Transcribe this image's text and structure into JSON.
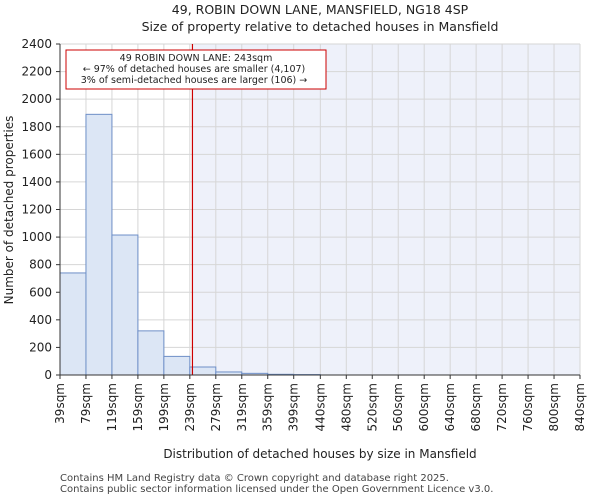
{
  "chart_data": {
    "type": "bar",
    "title": "49, ROBIN DOWN LANE, MANSFIELD, NG18 4SP",
    "subtitle": "Size of property relative to detached houses in Mansfield",
    "xlabel": "Distribution of detached houses by size in Mansfield",
    "ylabel": "Number of detached properties",
    "ylim": [
      0,
      2400
    ],
    "yticks": [
      0,
      200,
      400,
      600,
      800,
      1000,
      1200,
      1400,
      1600,
      1800,
      2000,
      2200,
      2400
    ],
    "xlim": [
      39,
      840
    ],
    "categories": [
      "39sqm",
      "79sqm",
      "119sqm",
      "159sqm",
      "199sqm",
      "239sqm",
      "279sqm",
      "319sqm",
      "359sqm",
      "399sqm",
      "440sqm",
      "480sqm",
      "520sqm",
      "560sqm",
      "600sqm",
      "640sqm",
      "680sqm",
      "720sqm",
      "760sqm",
      "800sqm",
      "840sqm"
    ],
    "tick_values": [
      39,
      79,
      119,
      159,
      199,
      239,
      279,
      319,
      359,
      399,
      440,
      480,
      520,
      560,
      600,
      640,
      680,
      720,
      760,
      800,
      840
    ],
    "bins": [
      {
        "start": 39,
        "end": 79,
        "value": 740
      },
      {
        "start": 79,
        "end": 119,
        "value": 1890
      },
      {
        "start": 119,
        "end": 159,
        "value": 1015
      },
      {
        "start": 159,
        "end": 199,
        "value": 320
      },
      {
        "start": 199,
        "end": 239,
        "value": 135
      },
      {
        "start": 239,
        "end": 279,
        "value": 58
      },
      {
        "start": 279,
        "end": 319,
        "value": 22
      },
      {
        "start": 319,
        "end": 359,
        "value": 12
      },
      {
        "start": 359,
        "end": 399,
        "value": 5
      },
      {
        "start": 399,
        "end": 440,
        "value": 3
      },
      {
        "start": 440,
        "end": 480,
        "value": 0
      },
      {
        "start": 480,
        "end": 520,
        "value": 0
      },
      {
        "start": 520,
        "end": 560,
        "value": 0
      },
      {
        "start": 560,
        "end": 600,
        "value": 0
      },
      {
        "start": 600,
        "end": 640,
        "value": 0
      },
      {
        "start": 640,
        "end": 680,
        "value": 0
      },
      {
        "start": 680,
        "end": 720,
        "value": 0
      },
      {
        "start": 720,
        "end": 760,
        "value": 0
      },
      {
        "start": 760,
        "end": 800,
        "value": 0
      },
      {
        "start": 800,
        "end": 840,
        "value": 0
      }
    ],
    "marker": {
      "value": 243,
      "color": "#cc0000",
      "annotation": [
        "49 ROBIN DOWN LANE: 243sqm",
        "← 97% of detached houses are smaller (4,107)",
        "3% of semi-detached houses are larger (106) →"
      ]
    },
    "bar_fill": "#dce6f5",
    "bar_stroke": "#6e8fc7",
    "highlight_fill": "#eef1fa",
    "grid": true
  },
  "footer": {
    "line1": "Contains HM Land Registry data © Crown copyright and database right 2025.",
    "line2": "Contains public sector information licensed under the Open Government Licence v3.0."
  }
}
